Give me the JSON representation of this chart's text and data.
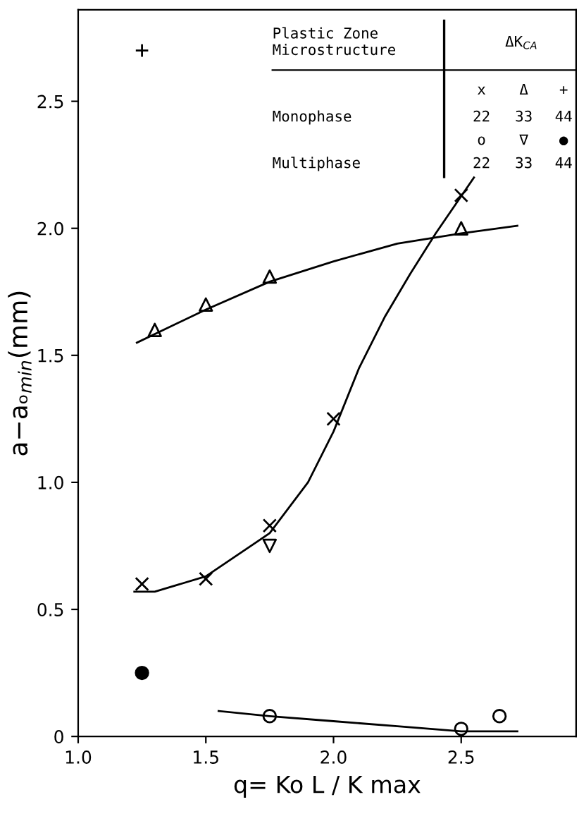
{
  "chart_data": {
    "type": "scatter",
    "xlabel": "q= Ko L / K max",
    "ylabel": "a−aₒ$_{min}$(mm)",
    "xlim": [
      1.0,
      2.95
    ],
    "ylim": [
      0,
      2.86
    ],
    "xticks": [
      {
        "value": 1,
        "label": "1.0"
      },
      1.5,
      {
        "value": 2,
        "label": "2.0"
      },
      2.5
    ],
    "yticks": [
      0,
      0.5,
      {
        "value": 1,
        "label": "1.0"
      },
      1.5,
      {
        "value": 2,
        "label": "2.0"
      },
      2.5
    ],
    "grid": false,
    "legend": false,
    "series": [
      {
        "marker": "cross",
        "color": "#000000",
        "x": [
          1.25,
          1.5,
          1.75,
          2.0,
          2.5
        ],
        "values": [
          0.6,
          0.62,
          0.83,
          1.25,
          2.13
        ]
      },
      {
        "marker": "triangle",
        "color": "#000000",
        "x": [
          1.3,
          1.5,
          1.75,
          2.5
        ],
        "values": [
          1.6,
          1.7,
          1.81,
          2.0
        ]
      },
      {
        "marker": "plus",
        "color": "#000000",
        "x": [
          1.25
        ],
        "values": [
          2.7
        ]
      },
      {
        "marker": "circle_open",
        "color": "#000000",
        "x": [
          1.75,
          2.5,
          2.65
        ],
        "values": [
          0.08,
          0.03,
          0.08
        ]
      },
      {
        "marker": "triangle_down",
        "color": "#000000",
        "x": [
          1.75
        ],
        "values": [
          0.75
        ]
      },
      {
        "marker": "circle",
        "color": "#000000",
        "x": [
          1.25
        ],
        "values": [
          0.25
        ]
      },
      {
        "type": "line",
        "marker": "none",
        "color": "#000000",
        "x": [
          1.22,
          1.3,
          1.5,
          1.75,
          1.9,
          2.0,
          2.1,
          2.2,
          2.3,
          2.4,
          2.55
        ],
        "values": [
          0.57,
          0.57,
          0.63,
          0.8,
          1.0,
          1.2,
          1.45,
          1.65,
          1.82,
          1.98,
          2.2
        ]
      },
      {
        "type": "line",
        "marker": "none",
        "color": "#000000",
        "x": [
          1.23,
          1.5,
          1.75,
          2.0,
          2.25,
          2.5,
          2.72
        ],
        "values": [
          1.55,
          1.68,
          1.79,
          1.87,
          1.94,
          1.98,
          2.01
        ]
      },
      {
        "type": "line",
        "marker": "none",
        "color": "#000000",
        "x": [
          1.55,
          1.75,
          2.0,
          2.25,
          2.5,
          2.72
        ],
        "values": [
          0.1,
          0.08,
          0.06,
          0.04,
          0.02,
          0.02
        ]
      }
    ],
    "annotations": [
      "Plastic Zone\nMicrostructure",
      "ΔK$_{CA}$",
      "Monophase",
      "Multiphase",
      "x",
      "Δ",
      "+",
      "22",
      "33",
      "44",
      "o",
      "∇",
      "●",
      "22",
      "33",
      "44"
    ]
  }
}
